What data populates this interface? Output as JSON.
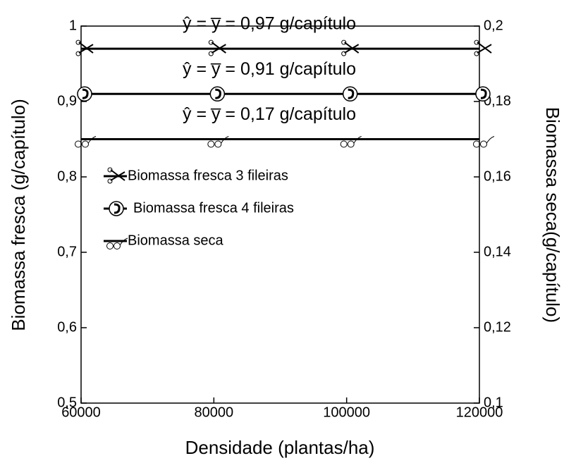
{
  "chart_data": {
    "type": "line",
    "x_label": "Densidade (plantas/ha)",
    "y_label": "Biomassa fresca (g/capítulo)",
    "y2_label": "Biomassa seca(g/capítulo)",
    "x": [
      60000,
      80000,
      100000,
      120000
    ],
    "series": [
      {
        "name": "Biomassa fresca 3 fileiras",
        "color": "#000000",
        "values": [
          0.97,
          0.97,
          0.97,
          0.97
        ]
      },
      {
        "name": "Biomassa fresca 4 fileiras",
        "color": "#000000",
        "values": [
          0.91,
          0.91,
          0.91,
          0.91
        ]
      },
      {
        "name": "Biomassa seca",
        "color": "#000000",
        "axis": "y2",
        "values": [
          0.17,
          0.17,
          0.17,
          0.17
        ]
      }
    ],
    "annotations": [
      "ŷ = y̅ = 0,97 g/capítulo",
      "ŷ = y̅ = 0,91 g/capítulo",
      "ŷ = y̅ = 0,17 g/capítulo"
    ],
    "xlim": [
      60000,
      120000
    ],
    "xticks": [
      60000,
      80000,
      100000,
      120000
    ],
    "ylim": [
      0.5,
      1
    ],
    "yticks": [
      {
        "value": 0.5,
        "label": "0,5"
      },
      {
        "value": 0.6,
        "label": "0,6"
      },
      {
        "value": 0.7,
        "label": "0,7"
      },
      {
        "value": 0.8,
        "label": "0,8"
      },
      {
        "value": 0.9,
        "label": "0,9"
      },
      1
    ],
    "y2lim": [
      0.1,
      0.2
    ],
    "y2ticks": [
      {
        "value": 0.1,
        "label": "0,1"
      },
      {
        "value": 0.12,
        "label": "0,12"
      },
      {
        "value": 0.14,
        "label": "0,14"
      },
      {
        "value": 0.16,
        "label": "0,16"
      },
      {
        "value": 0.18,
        "label": "0,18"
      },
      {
        "value": 0.2,
        "label": "0,2"
      }
    ],
    "legend": "upper left"
  }
}
